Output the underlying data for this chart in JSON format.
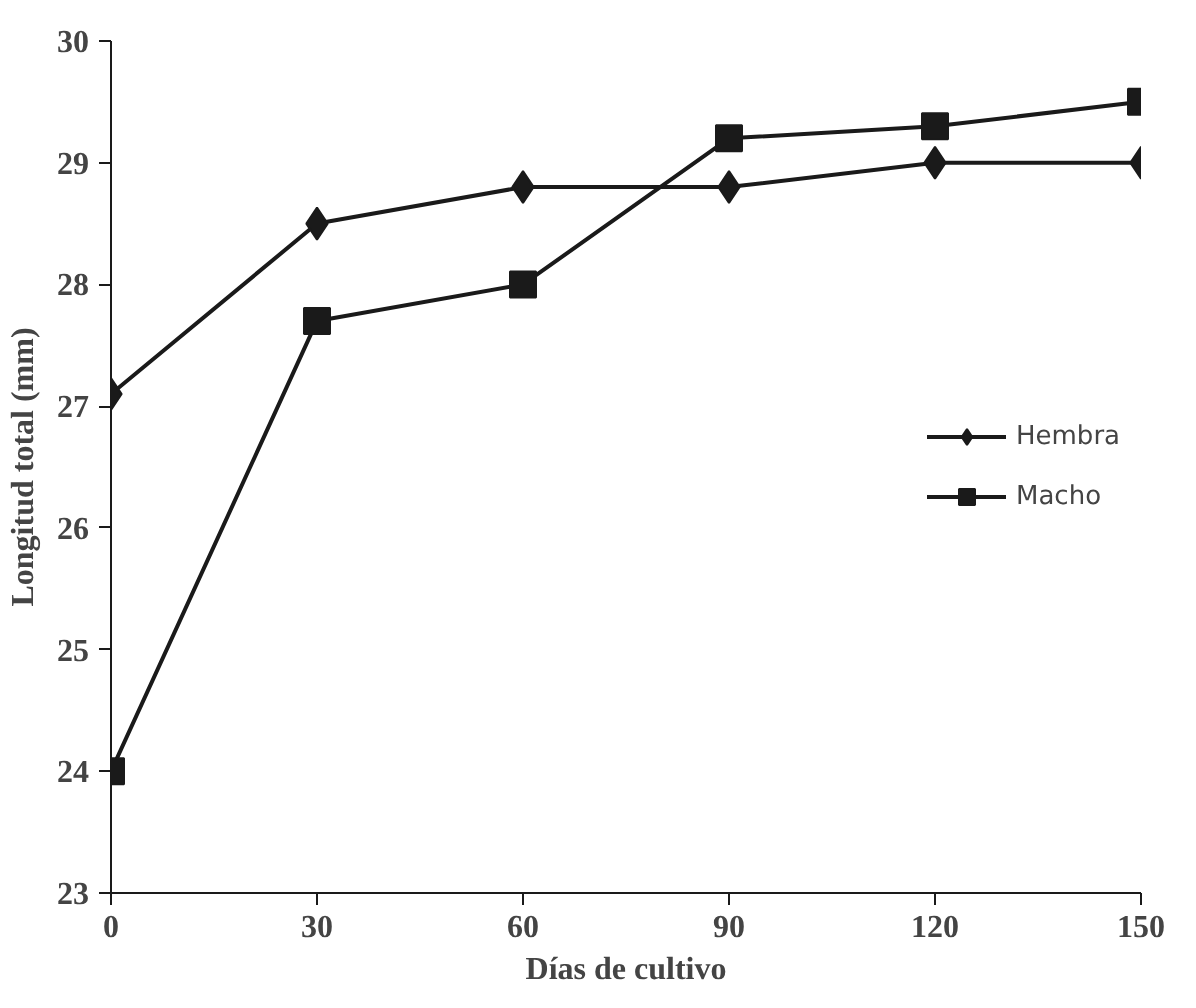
{
  "chart_data": {
    "type": "line",
    "xlabel": "Días de cultivo",
    "ylabel": "Longitud total (mm)",
    "x": [
      0,
      30,
      60,
      90,
      120,
      150
    ],
    "series": [
      {
        "name": "Hembra",
        "color": "#1a1a1a",
        "marker": "diamond",
        "values": [
          27.1,
          28.5,
          28.8,
          28.8,
          29.0,
          29.0
        ]
      },
      {
        "name": "Macho",
        "color": "#1a1a1a",
        "marker": "square",
        "values": [
          24.0,
          27.7,
          28.0,
          29.2,
          29.3,
          29.5
        ]
      }
    ],
    "xlim": [
      0,
      150
    ],
    "xticks": [
      0,
      30,
      60,
      90,
      120,
      150
    ],
    "ylim": [
      23,
      30
    ],
    "yticks": [
      23,
      24,
      25,
      26,
      27,
      28,
      29,
      30
    ],
    "grid": false,
    "legend": "right",
    "line_style": "solid"
  }
}
